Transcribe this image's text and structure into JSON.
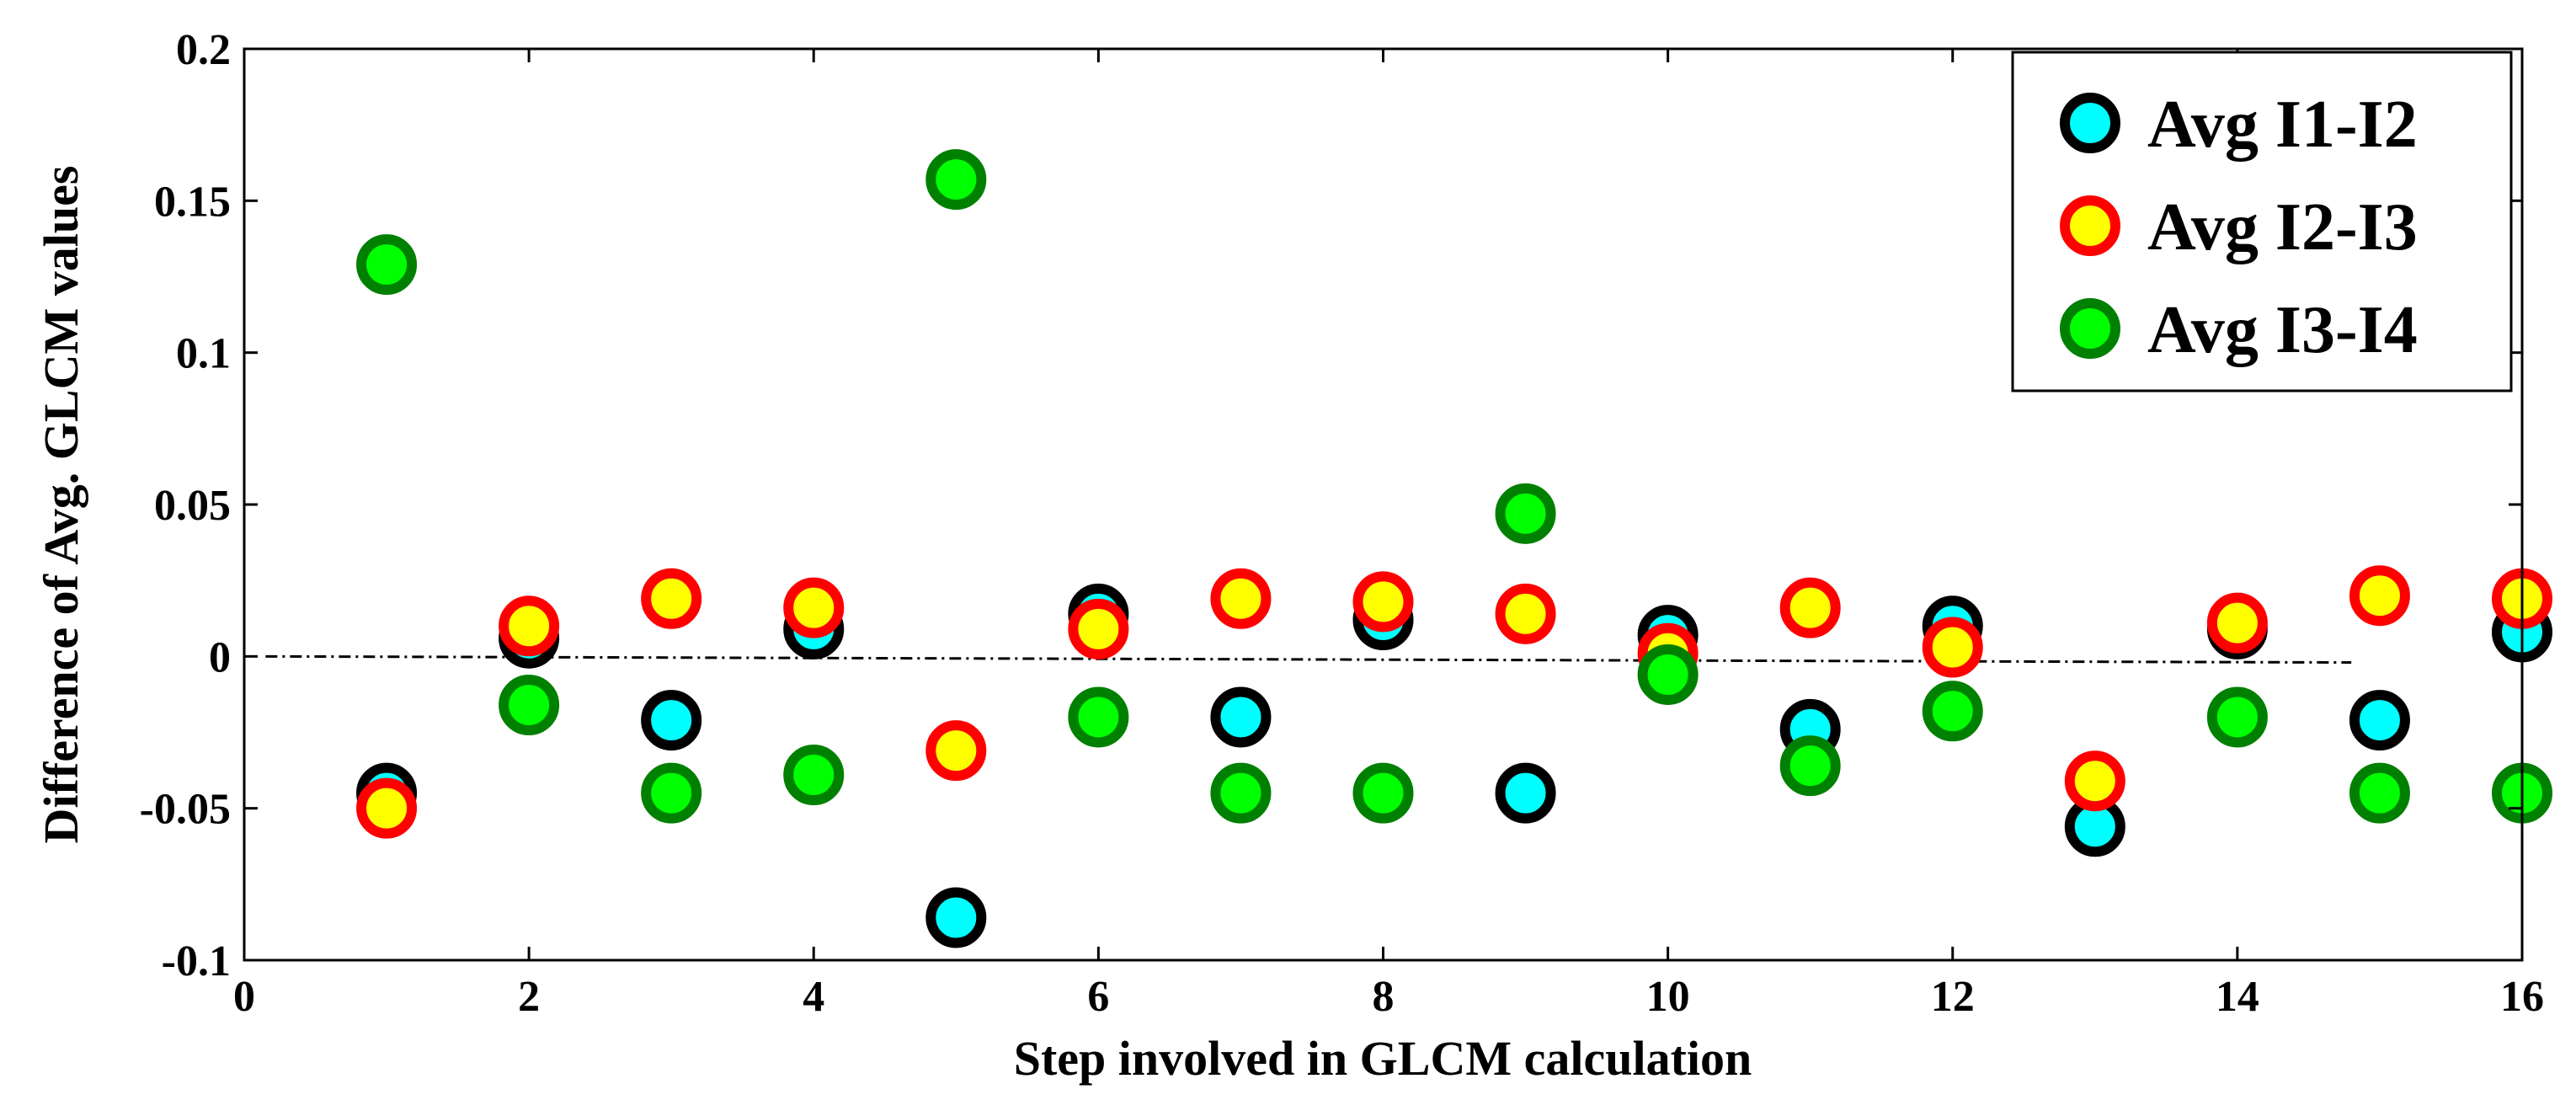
{
  "chart_data": {
    "type": "scatter",
    "title": "",
    "xlabel": "Step involved in GLCM calculation",
    "ylabel": "Difference of Avg. GLCM values",
    "xlim": [
      0,
      16
    ],
    "ylim": [
      -0.1,
      0.2
    ],
    "x_ticks": [
      0,
      2,
      4,
      6,
      8,
      10,
      12,
      14,
      16
    ],
    "x_tick_labels": [
      "0",
      "2",
      "4",
      "6",
      "8",
      "10",
      "12",
      "14",
      "16"
    ],
    "y_ticks": [
      -0.1,
      -0.05,
      0,
      0.05,
      0.1,
      0.15,
      0.2
    ],
    "y_tick_labels": [
      "-0.1",
      "-0.05",
      "0",
      "0.05",
      "0.1",
      "0.15",
      "0.2"
    ],
    "grid": false,
    "legend_position": "top-right",
    "reference_line": {
      "x": [
        0.15,
        14.8
      ],
      "y": [
        0,
        -0.002
      ],
      "style": "dash-dot",
      "color": "#000000"
    },
    "series": [
      {
        "name": "Avg I1-I2",
        "fill": "#00ffff",
        "edge": "#000000",
        "x": [
          1,
          2,
          3,
          4,
          5,
          6,
          7,
          8,
          9,
          10,
          11,
          12,
          13,
          14,
          15,
          16
        ],
        "y": [
          -0.045,
          0.006,
          -0.021,
          0.009,
          -0.086,
          0.014,
          -0.02,
          0.012,
          -0.045,
          0.007,
          -0.024,
          0.01,
          -0.056,
          0.009,
          -0.021,
          0.008
        ]
      },
      {
        "name": "Avg I2-I3",
        "fill": "#ffff00",
        "edge": "#ff0000",
        "x": [
          1,
          2,
          3,
          4,
          5,
          6,
          7,
          8,
          9,
          10,
          11,
          12,
          13,
          14,
          15,
          16
        ],
        "y": [
          -0.05,
          0.01,
          0.019,
          0.016,
          -0.031,
          0.009,
          0.019,
          0.018,
          0.014,
          0.001,
          0.016,
          0.003,
          -0.041,
          0.011,
          0.02,
          0.019
        ]
      },
      {
        "name": "Avg I3-I4",
        "fill": "#00ff00",
        "edge": "#008000",
        "x": [
          1,
          2,
          3,
          4,
          5,
          6,
          7,
          8,
          9,
          10,
          11,
          12,
          13,
          14,
          15,
          16
        ],
        "y": [
          0.129,
          -0.016,
          -0.045,
          -0.039,
          0.157,
          -0.02,
          -0.045,
          -0.045,
          0.047,
          -0.006,
          -0.036,
          -0.018,
          null,
          -0.02,
          -0.045,
          -0.045
        ]
      }
    ]
  }
}
